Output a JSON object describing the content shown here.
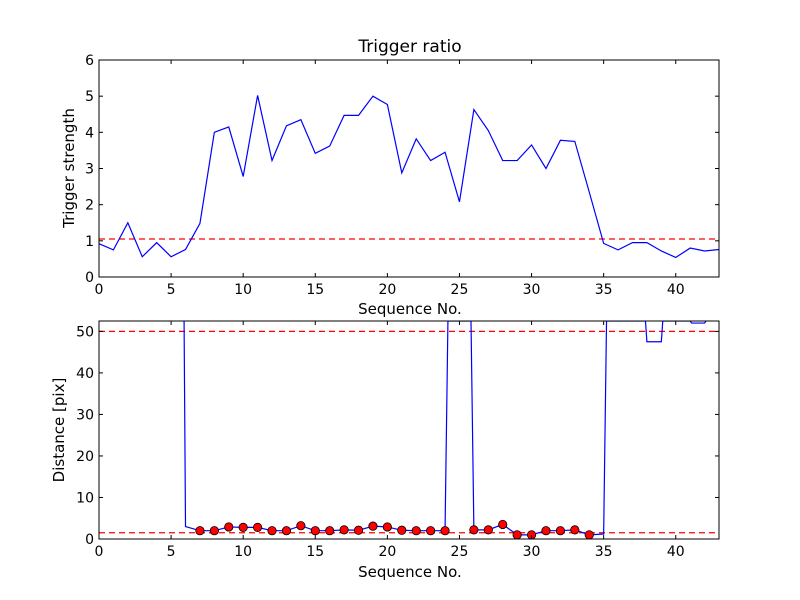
{
  "colors": {
    "line": "#0000ff",
    "threshold": "#ff0000",
    "marker_fill": "#ff0000",
    "marker_edge": "#000000"
  },
  "chart_data": [
    {
      "type": "line",
      "title": "Trigger ratio",
      "xlabel": "Sequence No.",
      "ylabel": "Trigger strength",
      "xlim": [
        0,
        43
      ],
      "ylim": [
        0,
        6
      ],
      "xticks": [
        0,
        5,
        10,
        15,
        20,
        25,
        30,
        35,
        40
      ],
      "yticks": [
        0,
        1,
        2,
        3,
        4,
        5,
        6
      ],
      "grid": false,
      "threshold_lines": [
        1.05
      ],
      "series": [
        {
          "x": [
            0,
            1,
            2,
            3,
            4,
            5,
            6,
            7,
            8,
            9,
            10,
            11,
            12,
            13,
            14,
            15,
            16,
            17,
            18,
            19,
            20,
            21,
            22,
            23,
            24,
            25,
            26,
            27,
            28,
            29,
            30,
            31,
            32,
            33,
            34,
            35,
            36,
            37,
            38,
            39,
            40,
            41,
            42,
            43
          ],
          "values": [
            0.92,
            0.75,
            1.5,
            0.56,
            0.95,
            0.56,
            0.76,
            1.48,
            4.0,
            4.15,
            2.78,
            5.02,
            3.22,
            4.18,
            4.35,
            3.42,
            3.62,
            4.47,
            4.47,
            5.0,
            4.77,
            2.88,
            3.82,
            3.22,
            3.45,
            2.08,
            4.63,
            4.05,
            3.22,
            3.22,
            3.65,
            3.0,
            3.78,
            3.75,
            2.35,
            0.93,
            0.75,
            0.95,
            0.95,
            0.72,
            0.54,
            0.8,
            0.72,
            0.76
          ]
        }
      ]
    },
    {
      "type": "line",
      "title": "",
      "xlabel": "Sequence No.",
      "ylabel": "Distance [pix]",
      "xlim": [
        0,
        43
      ],
      "ylim": [
        0,
        52.5
      ],
      "xticks": [
        0,
        5,
        10,
        15,
        20,
        25,
        30,
        35,
        40
      ],
      "yticks": [
        0,
        10,
        20,
        30,
        40,
        50
      ],
      "grid": false,
      "threshold_lines": [
        50,
        1.5
      ],
      "series": [
        {
          "x": [
            5.9,
            6,
            7,
            8,
            9,
            10,
            11,
            12,
            13,
            14,
            15,
            16,
            17,
            18,
            19,
            20,
            21,
            22,
            23,
            24,
            24.2,
            25.8,
            26,
            27,
            28,
            29,
            30,
            31,
            32,
            33,
            34,
            35,
            35.2,
            37.9,
            38,
            39,
            39.1,
            41,
            41.1,
            42,
            42.1
          ],
          "values": [
            52.5,
            3.0,
            2.0,
            2.0,
            2.9,
            2.8,
            2.8,
            2.0,
            2.0,
            3.2,
            2.0,
            2.0,
            2.2,
            2.1,
            3.1,
            2.9,
            2.1,
            2.0,
            2.0,
            2.0,
            52.5,
            52.5,
            2.2,
            2.2,
            3.5,
            1.0,
            1.0,
            2.0,
            2.0,
            2.2,
            1.0,
            1.2,
            52.5,
            52.5,
            47.5,
            47.5,
            52.5,
            52.5,
            52.0,
            52.0,
            52.5
          ]
        }
      ],
      "markers": {
        "x": [
          7,
          8,
          9,
          10,
          11,
          12,
          13,
          14,
          15,
          16,
          17,
          18,
          19,
          20,
          21,
          22,
          23,
          24,
          26,
          27,
          28,
          29,
          30,
          31,
          32,
          33,
          34
        ],
        "values": [
          2.0,
          2.0,
          2.9,
          2.8,
          2.8,
          2.0,
          2.0,
          3.2,
          2.0,
          2.0,
          2.2,
          2.1,
          3.1,
          2.9,
          2.1,
          2.0,
          2.0,
          2.0,
          2.2,
          2.2,
          3.5,
          1.0,
          1.0,
          2.0,
          2.0,
          2.2,
          1.0
        ]
      }
    }
  ]
}
